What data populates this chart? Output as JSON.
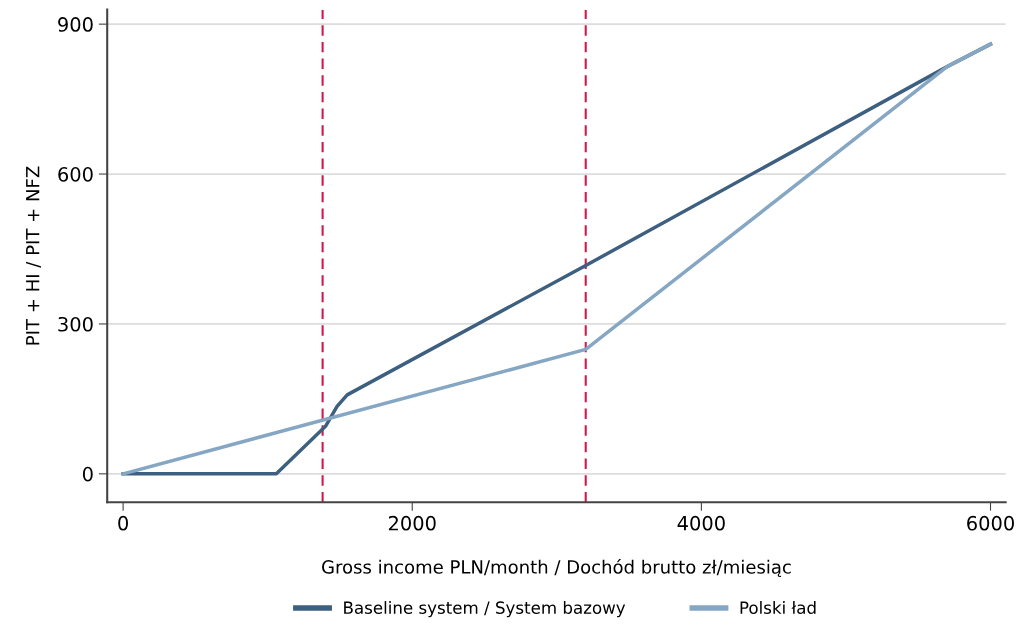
{
  "chart_data": {
    "type": "line",
    "xlabel": "Gross income PLN/month / Dochód brutto zł/miesiąc",
    "ylabel": "PIT + HI / PIT + NFZ",
    "series": [
      {
        "name": "Baseline system / System bazowy",
        "color": "#3d5f80",
        "x": [
          0,
          1060,
          1400,
          1480,
          1550,
          3200,
          5700,
          6000
        ],
        "values": [
          0,
          0,
          95,
          135,
          158,
          417,
          815,
          860
        ]
      },
      {
        "name": "Polski ład",
        "color": "#85a7c4",
        "x": [
          0,
          3200,
          5700,
          6000
        ],
        "values": [
          0,
          249,
          815,
          860
        ]
      }
    ],
    "xlim": [
      -110,
      6105
    ],
    "ylim": [
      -57,
      929
    ],
    "xticks": [
      0,
      2000,
      4000,
      6000
    ],
    "yticks": [
      0,
      300,
      600,
      900
    ],
    "ref_lines": [
      {
        "axis": "x",
        "value": 1380,
        "color": "#d0184a",
        "line_style": "dashed"
      },
      {
        "axis": "x",
        "value": 3200,
        "color": "#d0184a",
        "line_style": "dashed"
      }
    ],
    "grid": "y",
    "legend": "bottom",
    "marker": "none",
    "line_style": "solid"
  }
}
